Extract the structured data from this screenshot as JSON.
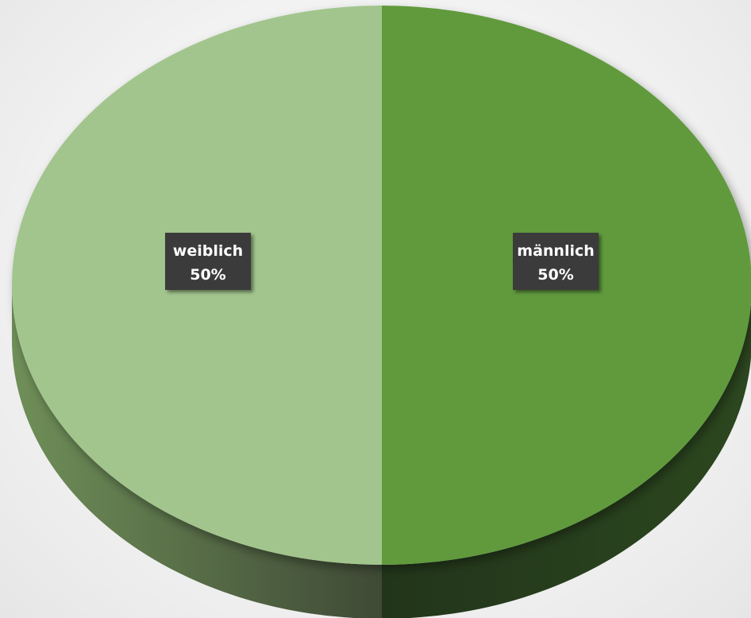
{
  "chart_data": {
    "type": "pie",
    "categories": [
      "weiblich",
      "männlich"
    ],
    "values": [
      50,
      50
    ],
    "value_labels": [
      "50%",
      "50%"
    ],
    "colors": [
      "#a2c58d",
      "#619a3d"
    ],
    "side_colors": [
      "#4a6238",
      "#253d18"
    ],
    "style": "3d",
    "legend": "none"
  }
}
